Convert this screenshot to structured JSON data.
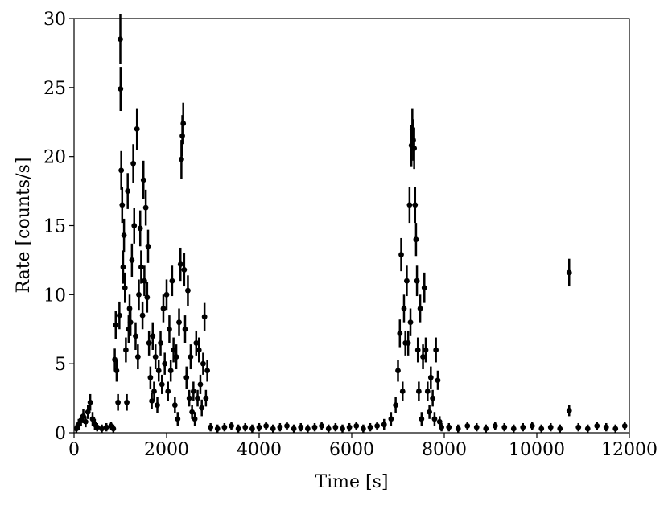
{
  "chart_data": {
    "type": "errorbar",
    "xlabel": "Time [s]",
    "ylabel": "Rate [counts/s]",
    "x": [
      50,
      100,
      150,
      200,
      250,
      300,
      350,
      400,
      450,
      500,
      600,
      700,
      800,
      850,
      880,
      900,
      920,
      950,
      980,
      1000,
      1005,
      1020,
      1040,
      1060,
      1080,
      1100,
      1120,
      1140,
      1160,
      1180,
      1200,
      1220,
      1250,
      1280,
      1300,
      1330,
      1360,
      1380,
      1400,
      1430,
      1450,
      1480,
      1500,
      1520,
      1550,
      1580,
      1600,
      1620,
      1650,
      1680,
      1700,
      1730,
      1760,
      1800,
      1830,
      1870,
      1900,
      1930,
      1960,
      2000,
      2030,
      2060,
      2090,
      2120,
      2150,
      2180,
      2210,
      2240,
      2270,
      2300,
      2320,
      2340,
      2360,
      2380,
      2400,
      2430,
      2460,
      2490,
      2520,
      2550,
      2580,
      2610,
      2640,
      2670,
      2700,
      2730,
      2760,
      2790,
      2820,
      2850,
      2880,
      2950,
      3100,
      3250,
      3400,
      3550,
      3700,
      3850,
      4000,
      4150,
      4300,
      4450,
      4600,
      4750,
      4900,
      5050,
      5200,
      5350,
      5500,
      5650,
      5800,
      5950,
      6100,
      6250,
      6400,
      6550,
      6700,
      6850,
      6950,
      7000,
      7040,
      7070,
      7100,
      7130,
      7160,
      7190,
      7220,
      7250,
      7270,
      7290,
      7310,
      7330,
      7350,
      7370,
      7390,
      7410,
      7430,
      7450,
      7480,
      7510,
      7540,
      7570,
      7600,
      7640,
      7680,
      7710,
      7750,
      7790,
      7820,
      7860,
      7900,
      7940,
      8100,
      8300,
      8500,
      8700,
      8900,
      9100,
      9300,
      9500,
      9700,
      9900,
      10100,
      10300,
      10500,
      10700,
      10700,
      10900,
      11100,
      11300,
      11500,
      11700,
      11900
    ],
    "series": [
      {
        "color": "#000000",
        "values": [
          0.3,
          0.6,
          0.9,
          1.2,
          0.8,
          1.5,
          2.2,
          1.0,
          0.6,
          0.4,
          0.3,
          0.4,
          0.5,
          0.3,
          5.3,
          7.8,
          4.5,
          2.2,
          8.5,
          28.5,
          24.9,
          19.0,
          16.5,
          12.0,
          14.3,
          10.5,
          6.0,
          2.2,
          17.5,
          7.5,
          9.0,
          8.0,
          12.5,
          19.5,
          15.0,
          7.0,
          22.0,
          5.5,
          10.0,
          14.8,
          12.0,
          8.5,
          18.3,
          11.0,
          16.3,
          9.8,
          13.5,
          6.5,
          4.0,
          2.3,
          7.0,
          3.0,
          5.5,
          2.0,
          4.5,
          6.5,
          3.5,
          9.0,
          5.0,
          10.0,
          3.0,
          7.5,
          4.5,
          11.0,
          6.0,
          2.0,
          5.5,
          1.0,
          8.0,
          12.2,
          19.8,
          21.5,
          22.4,
          11.8,
          7.5,
          4.0,
          10.3,
          2.5,
          5.5,
          1.5,
          3.0,
          1.0,
          6.5,
          2.5,
          6.0,
          3.5,
          1.8,
          5.0,
          8.4,
          2.5,
          4.5,
          0.4,
          0.3,
          0.4,
          0.5,
          0.3,
          0.4,
          0.3,
          0.4,
          0.5,
          0.3,
          0.4,
          0.5,
          0.3,
          0.4,
          0.3,
          0.4,
          0.5,
          0.3,
          0.4,
          0.3,
          0.4,
          0.5,
          0.3,
          0.4,
          0.5,
          0.6,
          1.0,
          2.0,
          4.5,
          7.2,
          12.9,
          3.0,
          9.0,
          6.5,
          11.0,
          6.5,
          16.5,
          8.0,
          20.8,
          22.0,
          21.2,
          20.6,
          16.5,
          14.0,
          11.0,
          6.0,
          3.0,
          9.0,
          1.0,
          5.5,
          10.5,
          6.0,
          3.0,
          1.5,
          4.0,
          2.5,
          1.0,
          6.0,
          3.8,
          0.8,
          0.4,
          0.4,
          0.3,
          0.5,
          0.4,
          0.3,
          0.5,
          0.4,
          0.3,
          0.4,
          0.5,
          0.3,
          0.4,
          0.3,
          11.6,
          1.6,
          0.4,
          0.3,
          0.5,
          0.4,
          0.3,
          0.5
        ],
        "errors": [
          0.3,
          0.4,
          0.4,
          0.5,
          0.4,
          0.5,
          0.6,
          0.5,
          0.4,
          0.3,
          0.3,
          0.3,
          0.3,
          0.3,
          0.8,
          1.0,
          0.8,
          0.6,
          1.0,
          1.8,
          1.6,
          1.4,
          1.3,
          1.2,
          1.2,
          1.1,
          0.9,
          0.6,
          1.3,
          1.0,
          1.0,
          1.0,
          1.2,
          1.4,
          1.3,
          1.0,
          1.5,
          0.9,
          1.1,
          1.3,
          1.2,
          1.0,
          1.4,
          1.1,
          1.3,
          1.1,
          1.2,
          0.9,
          0.8,
          0.6,
          1.0,
          0.7,
          0.9,
          0.6,
          0.8,
          0.9,
          0.7,
          1.0,
          0.8,
          1.1,
          0.7,
          1.0,
          0.8,
          1.1,
          0.9,
          0.6,
          0.9,
          0.5,
          1.0,
          1.2,
          1.4,
          1.5,
          1.5,
          1.2,
          1.0,
          0.8,
          1.1,
          0.6,
          0.9,
          0.5,
          0.7,
          0.5,
          0.9,
          0.6,
          0.9,
          0.7,
          0.6,
          0.8,
          1.0,
          0.6,
          0.8,
          0.3,
          0.3,
          0.3,
          0.3,
          0.3,
          0.3,
          0.3,
          0.3,
          0.3,
          0.3,
          0.3,
          0.3,
          0.3,
          0.3,
          0.3,
          0.3,
          0.3,
          0.3,
          0.3,
          0.3,
          0.3,
          0.3,
          0.3,
          0.3,
          0.3,
          0.4,
          0.5,
          0.6,
          0.8,
          1.0,
          1.2,
          0.7,
          1.0,
          0.9,
          1.1,
          0.9,
          1.3,
          1.0,
          1.5,
          1.5,
          1.5,
          1.5,
          1.3,
          1.2,
          1.1,
          0.9,
          0.7,
          1.0,
          0.5,
          0.9,
          1.1,
          0.9,
          0.7,
          0.5,
          0.8,
          0.6,
          0.5,
          0.9,
          0.7,
          0.4,
          0.3,
          0.3,
          0.3,
          0.3,
          0.3,
          0.3,
          0.3,
          0.3,
          0.3,
          0.3,
          0.3,
          0.3,
          0.3,
          0.3,
          1.0,
          0.4,
          0.3,
          0.3,
          0.3,
          0.3,
          0.3,
          0.3
        ]
      }
    ],
    "xlim": [
      0,
      12000
    ],
    "xticks": [
      0,
      2000,
      4000,
      6000,
      8000,
      10000,
      12000
    ],
    "ylim": [
      0,
      30
    ],
    "yticks": [
      0,
      5,
      10,
      15,
      20,
      25,
      30
    ],
    "grid": false
  }
}
